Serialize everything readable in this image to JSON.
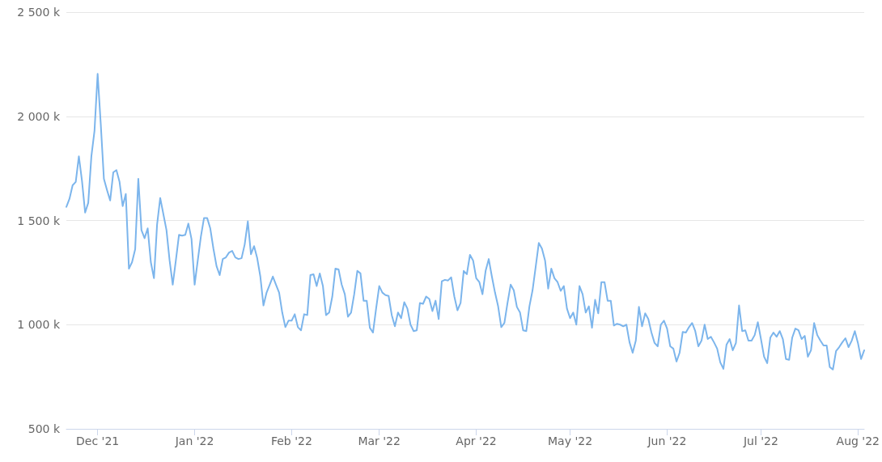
{
  "chart_data": {
    "type": "line",
    "x": [
      "2021-11-21",
      "2021-11-22",
      "2021-11-23",
      "2021-11-24",
      "2021-11-25",
      "2021-11-26",
      "2021-11-27",
      "2021-11-28",
      "2021-11-29",
      "2021-11-30",
      "2021-12-01",
      "2021-12-02",
      "2021-12-03",
      "2021-12-04",
      "2021-12-05",
      "2021-12-06",
      "2021-12-07",
      "2021-12-08",
      "2021-12-09",
      "2021-12-10",
      "2021-12-11",
      "2021-12-12",
      "2021-12-13",
      "2021-12-14",
      "2021-12-15",
      "2021-12-16",
      "2021-12-17",
      "2021-12-18",
      "2021-12-19",
      "2021-12-20",
      "2021-12-21",
      "2021-12-22",
      "2021-12-23",
      "2021-12-24",
      "2021-12-25",
      "2021-12-26",
      "2021-12-27",
      "2021-12-28",
      "2021-12-29",
      "2021-12-30",
      "2021-12-31",
      "2022-01-01",
      "2022-01-02",
      "2022-01-03",
      "2022-01-04",
      "2022-01-05",
      "2022-01-06",
      "2022-01-07",
      "2022-01-08",
      "2022-01-09",
      "2022-01-10",
      "2022-01-11",
      "2022-01-12",
      "2022-01-13",
      "2022-01-14",
      "2022-01-15",
      "2022-01-16",
      "2022-01-17",
      "2022-01-18",
      "2022-01-19",
      "2022-01-20",
      "2022-01-21",
      "2022-01-22",
      "2022-01-23",
      "2022-01-24",
      "2022-01-25",
      "2022-01-26",
      "2022-01-27",
      "2022-01-28",
      "2022-01-29",
      "2022-01-30",
      "2022-01-31",
      "2022-02-01",
      "2022-02-02",
      "2022-02-03",
      "2022-02-04",
      "2022-02-05",
      "2022-02-06",
      "2022-02-07",
      "2022-02-08",
      "2022-02-09",
      "2022-02-10",
      "2022-02-11",
      "2022-02-12",
      "2022-02-13",
      "2022-02-14",
      "2022-02-15",
      "2022-02-16",
      "2022-02-17",
      "2022-02-18",
      "2022-02-19",
      "2022-02-20",
      "2022-02-21",
      "2022-02-22",
      "2022-02-23",
      "2022-02-24",
      "2022-02-25",
      "2022-02-26",
      "2022-02-27",
      "2022-02-28",
      "2022-03-01",
      "2022-03-02",
      "2022-03-03",
      "2022-03-04",
      "2022-03-05",
      "2022-03-06",
      "2022-03-07",
      "2022-03-08",
      "2022-03-09",
      "2022-03-10",
      "2022-03-11",
      "2022-03-12",
      "2022-03-13",
      "2022-03-14",
      "2022-03-15",
      "2022-03-16",
      "2022-03-17",
      "2022-03-18",
      "2022-03-19",
      "2022-03-20",
      "2022-03-21",
      "2022-03-22",
      "2022-03-23",
      "2022-03-24",
      "2022-03-25",
      "2022-03-26",
      "2022-03-27",
      "2022-03-28",
      "2022-03-29",
      "2022-03-30",
      "2022-03-31",
      "2022-04-01",
      "2022-04-02",
      "2022-04-03",
      "2022-04-04",
      "2022-04-05",
      "2022-04-06",
      "2022-04-07",
      "2022-04-08",
      "2022-04-09",
      "2022-04-10",
      "2022-04-11",
      "2022-04-12",
      "2022-04-13",
      "2022-04-14",
      "2022-04-15",
      "2022-04-16",
      "2022-04-17",
      "2022-04-18",
      "2022-04-19",
      "2022-04-20",
      "2022-04-21",
      "2022-04-22",
      "2022-04-23",
      "2022-04-24",
      "2022-04-25",
      "2022-04-26",
      "2022-04-27",
      "2022-04-28",
      "2022-04-29",
      "2022-04-30",
      "2022-05-01",
      "2022-05-02",
      "2022-05-03",
      "2022-05-04",
      "2022-05-05",
      "2022-05-06",
      "2022-05-07",
      "2022-05-08",
      "2022-05-09",
      "2022-05-10",
      "2022-05-11",
      "2022-05-12",
      "2022-05-13",
      "2022-05-14",
      "2022-05-15",
      "2022-05-16",
      "2022-05-17",
      "2022-05-18",
      "2022-05-19",
      "2022-05-20",
      "2022-05-21",
      "2022-05-22",
      "2022-05-23",
      "2022-05-24",
      "2022-05-25",
      "2022-05-26",
      "2022-05-27",
      "2022-05-28",
      "2022-05-29",
      "2022-05-30",
      "2022-05-31",
      "2022-06-01",
      "2022-06-02",
      "2022-06-03",
      "2022-06-04",
      "2022-06-05",
      "2022-06-06",
      "2022-06-07",
      "2022-06-08",
      "2022-06-09",
      "2022-06-10",
      "2022-06-11",
      "2022-06-12",
      "2022-06-13",
      "2022-06-14",
      "2022-06-15",
      "2022-06-16",
      "2022-06-17",
      "2022-06-18",
      "2022-06-19",
      "2022-06-20",
      "2022-06-21",
      "2022-06-22",
      "2022-06-23",
      "2022-06-24",
      "2022-06-25",
      "2022-06-26",
      "2022-06-27",
      "2022-06-28",
      "2022-06-29",
      "2022-06-30",
      "2022-07-01",
      "2022-07-02",
      "2022-07-03",
      "2022-07-04",
      "2022-07-05",
      "2022-07-06",
      "2022-07-07",
      "2022-07-08",
      "2022-07-09",
      "2022-07-10",
      "2022-07-11",
      "2022-07-12",
      "2022-07-13",
      "2022-07-14",
      "2022-07-15",
      "2022-07-16",
      "2022-07-17",
      "2022-07-18",
      "2022-07-19",
      "2022-07-20",
      "2022-07-21",
      "2022-07-22",
      "2022-07-23",
      "2022-07-24",
      "2022-07-25",
      "2022-07-26",
      "2022-07-27",
      "2022-07-28",
      "2022-07-29",
      "2022-07-30",
      "2022-07-31",
      "2022-08-01",
      "2022-08-02",
      "2022-08-03"
    ],
    "values": [
      1565,
      1604,
      1669,
      1685,
      1808,
      1690,
      1538,
      1585,
      1808,
      1931,
      2204,
      1962,
      1700,
      1646,
      1596,
      1731,
      1742,
      1685,
      1569,
      1627,
      1269,
      1300,
      1362,
      1700,
      1454,
      1415,
      1462,
      1300,
      1223,
      1481,
      1608,
      1531,
      1454,
      1308,
      1192,
      1308,
      1431,
      1427,
      1431,
      1485,
      1411,
      1192,
      1308,
      1423,
      1512,
      1512,
      1462,
      1365,
      1281,
      1238,
      1315,
      1323,
      1346,
      1354,
      1323,
      1315,
      1319,
      1385,
      1496,
      1338,
      1377,
      1319,
      1231,
      1092,
      1154,
      1192,
      1231,
      1192,
      1154,
      1058,
      988,
      1019,
      1019,
      1050,
      988,
      973,
      1050,
      1046,
      1238,
      1242,
      1185,
      1246,
      1185,
      1046,
      1058,
      1135,
      1269,
      1265,
      1192,
      1146,
      1038,
      1058,
      1146,
      1258,
      1246,
      1115,
      1115,
      985,
      962,
      1077,
      1185,
      1154,
      1142,
      1138,
      1046,
      992,
      1058,
      1031,
      1108,
      1077,
      1000,
      969,
      973,
      1104,
      1100,
      1135,
      1123,
      1065,
      1115,
      1027,
      1208,
      1215,
      1212,
      1227,
      1135,
      1069,
      1104,
      1258,
      1242,
      1335,
      1308,
      1223,
      1204,
      1146,
      1258,
      1315,
      1231,
      1154,
      1088,
      988,
      1008,
      1104,
      1192,
      1165,
      1085,
      1058,
      973,
      969,
      1088,
      1165,
      1277,
      1392,
      1365,
      1308,
      1173,
      1269,
      1223,
      1204,
      1162,
      1185,
      1077,
      1031,
      1058,
      1000,
      1185,
      1146,
      1058,
      1088,
      985,
      1119,
      1054,
      1204,
      1204,
      1115,
      1115,
      996,
      1004,
      1000,
      992,
      1000,
      915,
      865,
      923,
      1085,
      992,
      1054,
      1027,
      962,
      912,
      896,
      1000,
      1019,
      981,
      896,
      885,
      823,
      865,
      965,
      962,
      988,
      1008,
      969,
      896,
      923,
      1000,
      931,
      942,
      915,
      885,
      819,
      788,
      904,
      931,
      877,
      912,
      1092,
      969,
      973,
      923,
      923,
      950,
      1012,
      931,
      846,
      815,
      938,
      962,
      942,
      969,
      931,
      835,
      831,
      938,
      981,
      973,
      931,
      946,
      846,
      877,
      1008,
      950,
      923,
      900,
      900,
      796,
      785,
      873,
      892,
      915,
      935,
      892,
      923,
      969,
      912,
      835,
      877
    ],
    "color": "#7cb5ec",
    "xlim": [
      "2021-11-21",
      "2022-08-03"
    ],
    "xticks": [
      {
        "value": "2021-12-01",
        "label": "Dec '21"
      },
      {
        "value": "2022-01-01",
        "label": "Jan '22"
      },
      {
        "value": "2022-02-01",
        "label": "Feb '22"
      },
      {
        "value": "2022-03-01",
        "label": "Mar '22"
      },
      {
        "value": "2022-04-01",
        "label": "Apr '22"
      },
      {
        "value": "2022-05-01",
        "label": "May '22"
      },
      {
        "value": "2022-06-01",
        "label": "Jun '22"
      },
      {
        "value": "2022-07-01",
        "label": "Jul '22"
      },
      {
        "value": "2022-08-01",
        "label": "Aug '22"
      }
    ],
    "ylim": [
      500,
      2500
    ],
    "yticks": [
      {
        "value": 500,
        "label": "500 k"
      },
      {
        "value": 1000,
        "label": "1 000 k"
      },
      {
        "value": 1500,
        "label": "1 500 k"
      },
      {
        "value": 2000,
        "label": "2 000 k"
      },
      {
        "value": 2500,
        "label": "2 500 k"
      }
    ],
    "grid": "y",
    "marker": "none",
    "line_style": "solid"
  }
}
